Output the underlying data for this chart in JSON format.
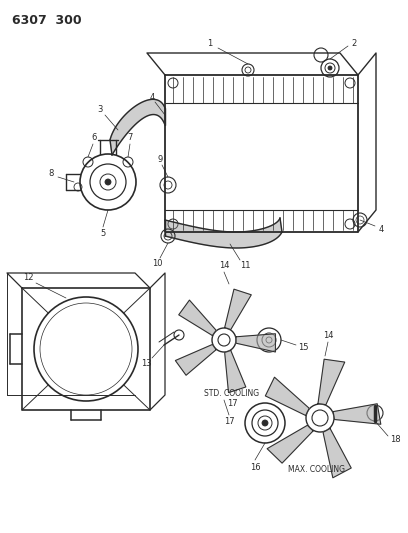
{
  "title": "6307  300",
  "bg_color": "#ffffff",
  "line_color": "#2a2a2a",
  "label_color": "#2a2a2a",
  "fig_w": 4.08,
  "fig_h": 5.33,
  "dpi": 100
}
